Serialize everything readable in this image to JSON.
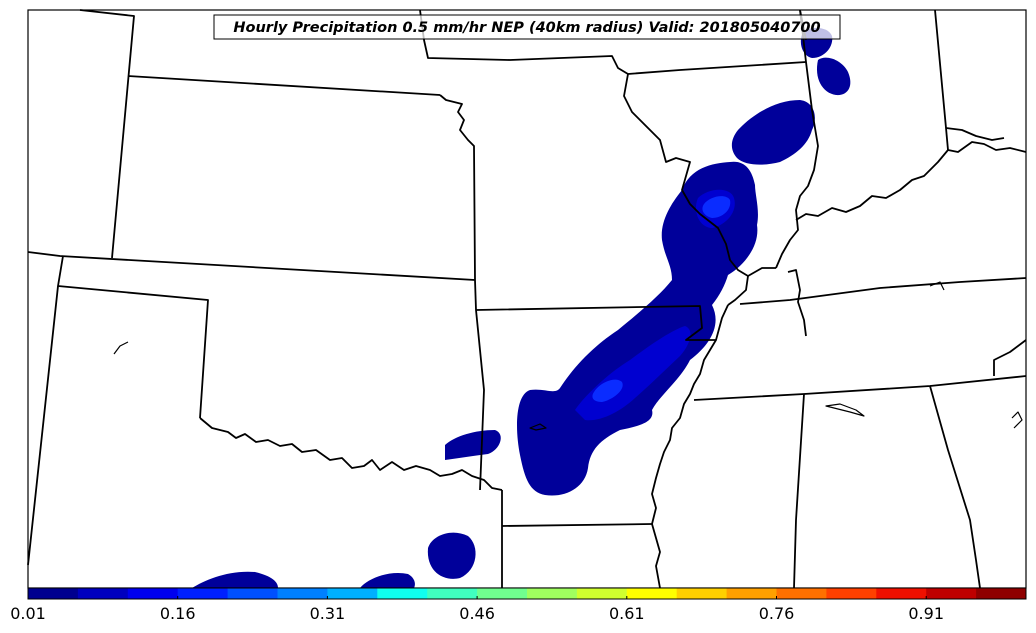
{
  "title": "Hourly Precipitation 0.5 mm/hr NEP (40km radius) Valid: 201805040700",
  "colorbar": {
    "tick_labels": [
      "0.01",
      "0.16",
      "0.31",
      "0.46",
      "0.61",
      "0.76",
      "0.91"
    ],
    "colors": [
      "#00008f",
      "#0000bf",
      "#0000ef",
      "#0020ff",
      "#0050ff",
      "#0080ff",
      "#00b0ff",
      "#10ffef",
      "#40ffbf",
      "#70ff8f",
      "#a0ff5f",
      "#d0ff2f",
      "#ffff00",
      "#ffd000",
      "#ffa000",
      "#ff7000",
      "#ff4000",
      "#ef1000",
      "#bf0000",
      "#8f0000"
    ]
  },
  "colors": {
    "prob_low": "#00009a",
    "prob_mid": "#0000d0",
    "prob_high": "#0a2cff",
    "boundary": "#000000",
    "background": "#ffffff"
  }
}
